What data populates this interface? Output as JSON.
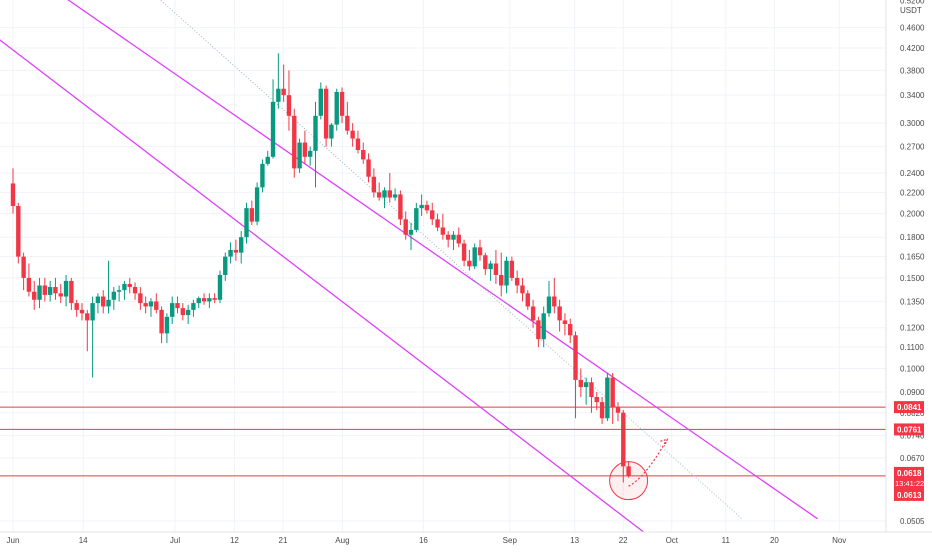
{
  "chart_data": {
    "type": "candlestick",
    "currency_label": "USDT",
    "scale": "log",
    "grid": true,
    "x_ticks": [
      {
        "label": "Jun",
        "day": 0
      },
      {
        "label": "14",
        "day": 13
      },
      {
        "label": "Jul",
        "day": 30
      },
      {
        "label": "12",
        "day": 41
      },
      {
        "label": "21",
        "day": 50
      },
      {
        "label": "Aug",
        "day": 61
      },
      {
        "label": "16",
        "day": 76
      },
      {
        "label": "Sep",
        "day": 92
      },
      {
        "label": "13",
        "day": 104
      },
      {
        "label": "22",
        "day": 113
      },
      {
        "label": "Oct",
        "day": 122
      },
      {
        "label": "11",
        "day": 132
      },
      {
        "label": "20",
        "day": 141
      },
      {
        "label": "Nov",
        "day": 153
      }
    ],
    "y_ticks": [
      "0.5200",
      "0.4600",
      "0.4200",
      "0.3800",
      "0.3400",
      "0.3000",
      "0.2700",
      "0.2400",
      "0.2200",
      "0.2000",
      "0.1800",
      "0.1650",
      "0.1500",
      "0.1350",
      "0.1200",
      "0.1100",
      "0.1000",
      "0.0900",
      "0.0820",
      "0.0740",
      "0.0670",
      "0.0505"
    ],
    "horizontal_levels": [
      {
        "value": 0.0841,
        "label": "0.0841"
      },
      {
        "value": 0.0761,
        "label": "0.0761"
      },
      {
        "value": 0.0618,
        "label": "0.0618"
      }
    ],
    "price_labels": {
      "current": "0.0618",
      "countdown": "13:41:22",
      "low": "0.0613"
    },
    "channel": {
      "upper": {
        "start": [
          -3,
          0.65
        ],
        "end": [
          149,
          0.051
        ]
      },
      "lower": {
        "start": [
          -3,
          0.44
        ],
        "end": [
          118,
          0.047
        ]
      },
      "mid": {
        "start": [
          17,
          0.65
        ],
        "end": [
          135,
          0.051
        ]
      }
    },
    "projection": [
      [
        114,
        0.059
      ],
      [
        116,
        0.0605
      ],
      [
        118.5,
        0.065
      ],
      [
        121,
        0.0725
      ]
    ],
    "candles": [
      [
        0.229,
        0.245,
        0.2,
        0.207
      ],
      [
        0.207,
        0.21,
        0.16,
        0.165
      ],
      [
        0.165,
        0.168,
        0.142,
        0.15
      ],
      [
        0.15,
        0.16,
        0.138,
        0.141
      ],
      [
        0.141,
        0.148,
        0.13,
        0.136
      ],
      [
        0.136,
        0.15,
        0.131,
        0.145
      ],
      [
        0.145,
        0.15,
        0.135,
        0.139
      ],
      [
        0.139,
        0.148,
        0.135,
        0.144
      ],
      [
        0.144,
        0.15,
        0.136,
        0.14
      ],
      [
        0.14,
        0.146,
        0.134,
        0.138
      ],
      [
        0.138,
        0.152,
        0.132,
        0.148
      ],
      [
        0.148,
        0.15,
        0.13,
        0.134
      ],
      [
        0.134,
        0.136,
        0.126,
        0.13
      ],
      [
        0.13,
        0.134,
        0.124,
        0.128
      ],
      [
        0.128,
        0.13,
        0.108,
        0.124
      ],
      [
        0.124,
        0.138,
        0.096,
        0.134
      ],
      [
        0.134,
        0.14,
        0.128,
        0.138
      ],
      [
        0.138,
        0.142,
        0.128,
        0.132
      ],
      [
        0.132,
        0.162,
        0.128,
        0.136
      ],
      [
        0.136,
        0.144,
        0.13,
        0.141
      ],
      [
        0.141,
        0.145,
        0.135,
        0.142
      ],
      [
        0.142,
        0.148,
        0.136,
        0.146
      ],
      [
        0.146,
        0.15,
        0.14,
        0.144
      ],
      [
        0.144,
        0.147,
        0.136,
        0.14
      ],
      [
        0.14,
        0.144,
        0.13,
        0.134
      ],
      [
        0.134,
        0.138,
        0.128,
        0.132
      ],
      [
        0.132,
        0.137,
        0.126,
        0.135
      ],
      [
        0.135,
        0.14,
        0.128,
        0.13
      ],
      [
        0.13,
        0.132,
        0.112,
        0.117
      ],
      [
        0.117,
        0.128,
        0.112,
        0.126
      ],
      [
        0.126,
        0.138,
        0.122,
        0.134
      ],
      [
        0.134,
        0.138,
        0.128,
        0.131
      ],
      [
        0.131,
        0.134,
        0.124,
        0.127
      ],
      [
        0.127,
        0.133,
        0.122,
        0.13
      ],
      [
        0.13,
        0.136,
        0.126,
        0.134
      ],
      [
        0.134,
        0.138,
        0.131,
        0.137
      ],
      [
        0.137,
        0.14,
        0.133,
        0.135
      ],
      [
        0.135,
        0.14,
        0.131,
        0.137
      ],
      [
        0.137,
        0.14,
        0.134,
        0.136
      ],
      [
        0.136,
        0.155,
        0.134,
        0.152
      ],
      [
        0.152,
        0.168,
        0.148,
        0.165
      ],
      [
        0.165,
        0.176,
        0.16,
        0.17
      ],
      [
        0.17,
        0.178,
        0.162,
        0.168
      ],
      [
        0.168,
        0.185,
        0.16,
        0.18
      ],
      [
        0.18,
        0.21,
        0.175,
        0.205
      ],
      [
        0.205,
        0.212,
        0.19,
        0.193
      ],
      [
        0.193,
        0.23,
        0.19,
        0.225
      ],
      [
        0.225,
        0.255,
        0.22,
        0.25
      ],
      [
        0.25,
        0.265,
        0.248,
        0.258
      ],
      [
        0.258,
        0.365,
        0.256,
        0.33
      ],
      [
        0.33,
        0.41,
        0.32,
        0.35
      ],
      [
        0.35,
        0.39,
        0.33,
        0.34
      ],
      [
        0.34,
        0.38,
        0.29,
        0.31
      ],
      [
        0.31,
        0.32,
        0.235,
        0.245
      ],
      [
        0.245,
        0.28,
        0.24,
        0.275
      ],
      [
        0.275,
        0.29,
        0.25,
        0.258
      ],
      [
        0.258,
        0.27,
        0.248,
        0.265
      ],
      [
        0.265,
        0.33,
        0.225,
        0.31
      ],
      [
        0.31,
        0.36,
        0.305,
        0.35
      ],
      [
        0.35,
        0.355,
        0.27,
        0.28
      ]
    ],
    "candle_groups_later": [
      [
        0.28,
        0.3,
        0.27,
        0.298
      ],
      [
        0.298,
        0.35,
        0.29,
        0.345
      ],
      [
        0.345,
        0.352,
        0.3,
        0.31
      ],
      [
        0.31,
        0.33,
        0.285,
        0.29
      ],
      [
        0.29,
        0.3,
        0.27,
        0.28
      ],
      [
        0.28,
        0.29,
        0.262,
        0.266
      ],
      [
        0.266,
        0.275,
        0.25,
        0.255
      ],
      [
        0.255,
        0.262,
        0.23,
        0.236
      ],
      [
        0.236,
        0.245,
        0.215,
        0.22
      ],
      [
        0.22,
        0.23,
        0.212,
        0.215
      ],
      [
        0.215,
        0.225,
        0.205,
        0.222
      ],
      [
        0.222,
        0.24,
        0.21,
        0.215
      ],
      [
        0.215,
        0.224,
        0.212,
        0.218
      ],
      [
        0.218,
        0.222,
        0.19,
        0.195
      ],
      [
        0.195,
        0.202,
        0.178,
        0.182
      ],
      [
        0.182,
        0.192,
        0.17,
        0.186
      ],
      [
        0.186,
        0.21,
        0.184,
        0.205
      ],
      [
        0.205,
        0.218,
        0.198,
        0.208
      ],
      [
        0.208,
        0.212,
        0.2,
        0.203
      ],
      [
        0.203,
        0.21,
        0.19,
        0.195
      ],
      [
        0.195,
        0.2,
        0.185,
        0.188
      ],
      [
        0.188,
        0.2,
        0.178,
        0.182
      ],
      [
        0.182,
        0.185,
        0.172,
        0.178
      ],
      [
        0.178,
        0.185,
        0.17,
        0.182
      ],
      [
        0.182,
        0.188,
        0.172,
        0.175
      ],
      [
        0.175,
        0.178,
        0.158,
        0.162
      ],
      [
        0.162,
        0.17,
        0.155,
        0.158
      ],
      [
        0.158,
        0.175,
        0.156,
        0.172
      ],
      [
        0.172,
        0.178,
        0.162,
        0.166
      ],
      [
        0.166,
        0.168,
        0.152,
        0.156
      ],
      [
        0.156,
        0.162,
        0.148,
        0.16
      ],
      [
        0.16,
        0.17,
        0.146,
        0.152
      ],
      [
        0.152,
        0.168,
        0.138,
        0.145
      ],
      [
        0.145,
        0.165,
        0.14,
        0.162
      ],
      [
        0.162,
        0.165,
        0.148,
        0.15
      ],
      [
        0.15,
        0.155,
        0.14,
        0.145
      ],
      [
        0.145,
        0.15,
        0.135,
        0.14
      ],
      [
        0.14,
        0.142,
        0.13,
        0.132
      ],
      [
        0.132,
        0.136,
        0.12,
        0.124
      ],
      [
        0.124,
        0.126,
        0.11,
        0.114
      ],
      [
        0.114,
        0.132,
        0.11,
        0.128
      ],
      [
        0.128,
        0.148,
        0.126,
        0.138
      ],
      [
        0.138,
        0.15,
        0.128,
        0.132
      ],
      [
        0.132,
        0.136,
        0.118,
        0.124
      ],
      [
        0.124,
        0.128,
        0.116,
        0.122
      ],
      [
        0.122,
        0.125,
        0.112,
        0.116
      ],
      [
        0.116,
        0.118,
        0.08,
        0.095
      ],
      [
        0.095,
        0.1,
        0.088,
        0.092
      ],
      [
        0.092,
        0.096,
        0.085,
        0.094
      ],
      [
        0.094,
        0.096,
        0.082,
        0.088
      ],
      [
        0.088,
        0.09,
        0.083,
        0.086
      ],
      [
        0.086,
        0.088,
        0.078,
        0.08
      ],
      [
        0.08,
        0.098,
        0.079,
        0.096
      ],
      [
        0.096,
        0.098,
        0.078,
        0.084
      ],
      [
        0.084,
        0.086,
        0.079,
        0.082
      ],
      [
        0.082,
        0.083,
        0.06,
        0.0645
      ],
      [
        0.0645,
        0.066,
        0.0613,
        0.0618
      ]
    ]
  }
}
